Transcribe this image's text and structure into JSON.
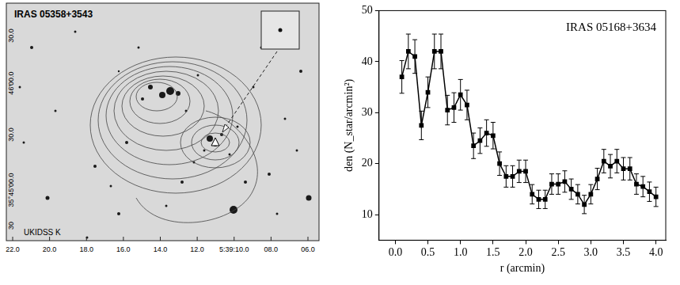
{
  "image_panel": {
    "title": "IRAS 05358+3543",
    "band": "UKIDSS K",
    "y_tick_labels": [
      "30.0",
      "46'00.0",
      "30.0",
      "35°45'00.0",
      "30"
    ],
    "x_tick_labels": [
      "22.0",
      "20.0",
      "18.0",
      "16.0",
      "14.0",
      "12.0",
      "5:39:10.0",
      "08.0",
      "06.0"
    ]
  },
  "chart_data": {
    "type": "line",
    "annotation": "IRAS 05168+3634",
    "x_label": "r (arcmin)",
    "y_label": "den (N_star/arcmin²)",
    "x": [
      0.1,
      0.2,
      0.3,
      0.4,
      0.5,
      0.6,
      0.7,
      0.8,
      0.9,
      1.0,
      1.1,
      1.2,
      1.3,
      1.4,
      1.5,
      1.6,
      1.7,
      1.8,
      1.9,
      2.0,
      2.1,
      2.2,
      2.3,
      2.4,
      2.5,
      2.6,
      2.7,
      2.8,
      2.9,
      3.0,
      3.1,
      3.2,
      3.3,
      3.4,
      3.5,
      3.6,
      3.7,
      3.8,
      3.9,
      4.0
    ],
    "values": [
      37,
      42,
      41,
      27.5,
      34,
      42,
      42,
      30.5,
      31,
      33.5,
      31.5,
      23.5,
      24.5,
      26,
      25.5,
      20,
      17.5,
      17.5,
      18.5,
      18.5,
      14,
      13,
      13,
      16,
      16,
      16.5,
      15,
      14,
      12,
      14,
      17,
      20.5,
      19.5,
      20.5,
      19,
      19,
      16,
      15.5,
      14.5,
      13.5
    ],
    "errors": [
      3.2,
      3.4,
      3.3,
      2.8,
      3.0,
      3.4,
      3.4,
      2.9,
      2.9,
      3.0,
      2.9,
      2.5,
      2.5,
      2.6,
      2.6,
      2.3,
      2.1,
      2.1,
      2.2,
      2.2,
      1.9,
      1.8,
      1.8,
      2.0,
      2.0,
      2.1,
      2.0,
      1.9,
      1.8,
      1.9,
      2.1,
      2.3,
      2.3,
      2.3,
      2.2,
      2.2,
      2.0,
      2.0,
      1.9,
      1.9
    ],
    "color": "#000000",
    "marker": "square",
    "line_style": "solid",
    "grid": false,
    "xlim": [
      -0.25,
      4.15
    ],
    "xticks": [
      {
        "value": 0,
        "label": "0.0"
      },
      {
        "value": 0.5,
        "label": "0.5"
      },
      {
        "value": 1,
        "label": "1.0"
      },
      {
        "value": 1.5,
        "label": "1.5"
      },
      {
        "value": 2,
        "label": "2.0"
      },
      {
        "value": 2.5,
        "label": "2.5"
      },
      {
        "value": 3,
        "label": "3.0"
      },
      {
        "value": 3.5,
        "label": "3.5"
      },
      {
        "value": 4,
        "label": "4.0"
      }
    ],
    "ylim": [
      5,
      50
    ],
    "yticks": [
      10,
      20,
      30,
      40,
      50
    ]
  }
}
